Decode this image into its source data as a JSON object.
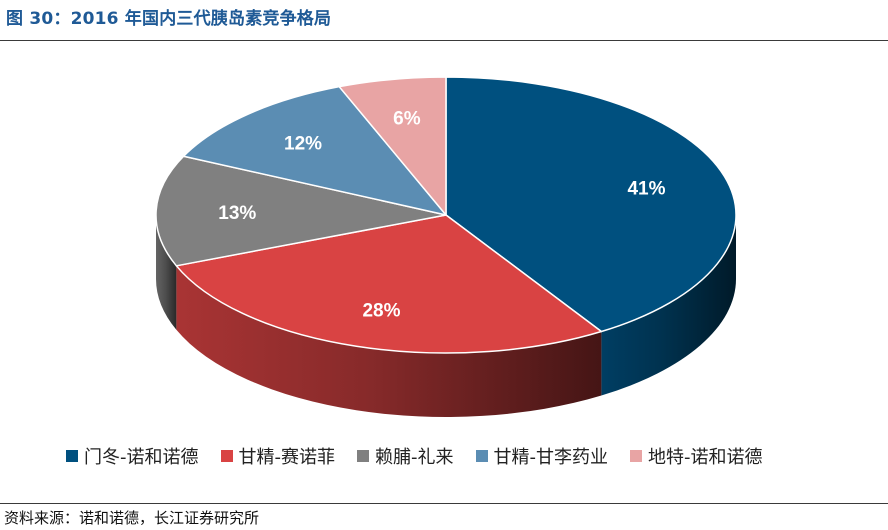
{
  "title": "图 30：2016 年国内三代胰岛素竞争格局",
  "source": "资料来源：诺和诺德，长江证券研究所",
  "chart_data": {
    "type": "pie",
    "style": "3d",
    "title": "",
    "legend_position": "bottom",
    "categories": [
      "门冬-诺和诺德",
      "甘精-赛诺菲",
      "赖脯-礼来",
      "甘精-甘李药业",
      "地特-诺和诺德"
    ],
    "values": [
      41,
      28,
      13,
      12,
      6
    ],
    "labels": [
      "41%",
      "28%",
      "13%",
      "12%",
      "6%"
    ],
    "colors": [
      "#00507f",
      "#d94343",
      "#808080",
      "#5b8db3",
      "#e8a4a4"
    ]
  }
}
